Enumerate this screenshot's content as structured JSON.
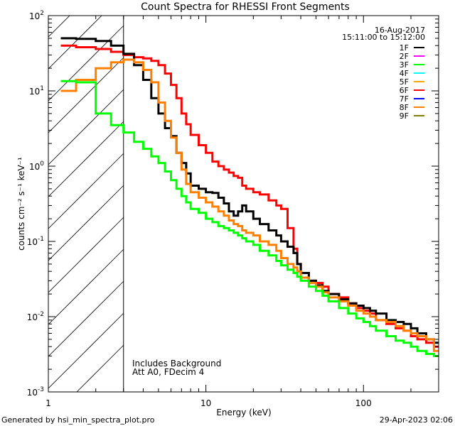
{
  "footer": {
    "left": "Generated by hsi_min_spectra_plot.pro",
    "right": "29-Apr-2023 02:06"
  },
  "chart_data": {
    "type": "line",
    "title": "Count Spectra for RHESSI Front Segments",
    "xlabel": "Energy (keV)",
    "ylabel": "counts cm⁻² s⁻¹ keV⁻¹",
    "xscale": "log",
    "yscale": "log",
    "xlim": [
      1,
      300
    ],
    "ylim": [
      0.001,
      100
    ],
    "x_ticks": [
      {
        "value": 1,
        "label": "1"
      },
      {
        "value": 10,
        "label": "10"
      },
      {
        "value": 100,
        "label": "100"
      }
    ],
    "y_ticks": [
      {
        "value": 0.001,
        "base": "10",
        "exp": "-3"
      },
      {
        "value": 0.01,
        "base": "10",
        "exp": "-2"
      },
      {
        "value": 0.1,
        "base": "10",
        "exp": "-1"
      },
      {
        "value": 1,
        "base": "10",
        "exp": "0"
      },
      {
        "value": 10,
        "base": "10",
        "exp": "1"
      },
      {
        "value": 100,
        "base": "10",
        "exp": "2"
      }
    ],
    "attenuator_cutoff_keV": 3,
    "hatched_region": [
      1,
      3
    ],
    "info": {
      "date": "16-Aug-2017",
      "time_range": "15:11:00 to 15:12:00"
    },
    "annotations": [
      "Includes Background",
      "Att A0, FDecim 4"
    ],
    "legend": [
      {
        "name": "1F",
        "color": "#000000"
      },
      {
        "name": "2F",
        "color": "#ff00ff"
      },
      {
        "name": "3F",
        "color": "#00ff00"
      },
      {
        "name": "4F",
        "color": "#00ffff"
      },
      {
        "name": "5F",
        "color": "#ffa500"
      },
      {
        "name": "6F",
        "color": "#ff0000"
      },
      {
        "name": "7F",
        "color": "#0000ff"
      },
      {
        "name": "8F",
        "color": "#ff8000"
      },
      {
        "name": "9F",
        "color": "#808000"
      }
    ],
    "series": [
      {
        "name": "6F",
        "color": "#ff0000",
        "x": [
          1.2,
          1.5,
          2.0,
          2.5,
          3.0,
          3.5,
          4.0,
          4.5,
          5.0,
          5.5,
          6.0,
          6.5,
          7.0,
          7.5,
          8.0,
          9.0,
          10,
          11,
          12,
          13,
          14,
          15,
          16,
          17,
          18,
          20,
          22,
          25,
          28,
          30,
          33,
          36,
          38,
          40,
          45,
          50,
          55,
          60,
          70,
          80,
          90,
          100,
          110,
          120,
          140,
          160,
          180,
          200,
          220,
          250,
          280
        ],
        "y": [
          40,
          38,
          36,
          33,
          30,
          28,
          27,
          25,
          22,
          17,
          12,
          8,
          5,
          3.6,
          2.6,
          1.9,
          1.5,
          1.15,
          1.0,
          0.9,
          0.82,
          0.74,
          0.7,
          0.55,
          0.5,
          0.45,
          0.42,
          0.35,
          0.3,
          0.27,
          0.15,
          0.08,
          0.05,
          0.038,
          0.03,
          0.028,
          0.025,
          0.02,
          0.018,
          0.015,
          0.013,
          0.012,
          0.011,
          0.009,
          0.008,
          0.007,
          0.0065,
          0.0055,
          0.005,
          0.0045,
          0.004
        ]
      },
      {
        "name": "1F",
        "color": "#000000",
        "x": [
          1.2,
          1.5,
          2.0,
          2.5,
          3.0,
          3.5,
          4.0,
          4.5,
          5.0,
          5.5,
          6.0,
          6.5,
          7.0,
          7.5,
          8.0,
          9.0,
          10,
          11,
          12,
          13,
          14,
          15,
          16,
          17,
          18,
          20,
          22,
          25,
          28,
          30,
          33,
          36,
          38,
          40,
          45,
          50,
          55,
          60,
          70,
          80,
          90,
          100,
          110,
          120,
          140,
          160,
          180,
          200,
          220,
          250,
          280
        ],
        "y": [
          50,
          49,
          46,
          40,
          31,
          22,
          14,
          8,
          5,
          3.2,
          2.5,
          1.5,
          1.1,
          0.8,
          0.55,
          0.5,
          0.45,
          0.44,
          0.38,
          0.32,
          0.25,
          0.22,
          0.25,
          0.3,
          0.25,
          0.2,
          0.17,
          0.14,
          0.12,
          0.1,
          0.085,
          0.07,
          0.05,
          0.038,
          0.03,
          0.026,
          0.022,
          0.02,
          0.017,
          0.015,
          0.014,
          0.013,
          0.012,
          0.011,
          0.009,
          0.0085,
          0.008,
          0.007,
          0.006,
          0.005,
          0.0045
        ]
      },
      {
        "name": "8F",
        "color": "#ff8000",
        "x": [
          1.2,
          1.5,
          2.0,
          2.5,
          3.0,
          3.5,
          4.0,
          4.5,
          5.0,
          5.5,
          6.0,
          6.5,
          7.0,
          7.5,
          8.0,
          9.0,
          10,
          11,
          12,
          13,
          14,
          15,
          16,
          17,
          18,
          20,
          22,
          25,
          28,
          30,
          33,
          36,
          38,
          40,
          45,
          50,
          55,
          60,
          70,
          80,
          90,
          100,
          110,
          120,
          140,
          160,
          180,
          200,
          220,
          250,
          280
        ],
        "y": [
          10,
          14,
          20,
          24,
          26,
          24,
          19,
          13,
          7,
          4,
          2.4,
          1.5,
          0.9,
          0.58,
          0.45,
          0.38,
          0.33,
          0.29,
          0.25,
          0.22,
          0.19,
          0.17,
          0.16,
          0.14,
          0.13,
          0.12,
          0.1,
          0.09,
          0.075,
          0.06,
          0.05,
          0.045,
          0.04,
          0.033,
          0.028,
          0.025,
          0.021,
          0.018,
          0.016,
          0.014,
          0.012,
          0.011,
          0.01,
          0.009,
          0.0085,
          0.0075,
          0.0065,
          0.006,
          0.0055,
          0.005,
          0.0035
        ]
      },
      {
        "name": "3F",
        "color": "#00ff00",
        "x": [
          1.2,
          1.5,
          2.0,
          2.5,
          3.0,
          3.5,
          4.0,
          4.5,
          5.0,
          5.5,
          6.0,
          6.5,
          7.0,
          7.5,
          8.0,
          9.0,
          10,
          11,
          12,
          13,
          14,
          15,
          16,
          17,
          18,
          20,
          22,
          25,
          28,
          30,
          33,
          36,
          38,
          40,
          45,
          50,
          55,
          60,
          70,
          80,
          90,
          100,
          110,
          120,
          140,
          160,
          180,
          200,
          220,
          250,
          280
        ],
        "y": [
          13.5,
          13,
          5,
          3.5,
          2.8,
          2.1,
          1.7,
          1.35,
          1.1,
          0.85,
          0.65,
          0.5,
          0.4,
          0.33,
          0.27,
          0.24,
          0.2,
          0.18,
          0.16,
          0.15,
          0.14,
          0.13,
          0.12,
          0.11,
          0.1,
          0.09,
          0.075,
          0.065,
          0.055,
          0.048,
          0.042,
          0.038,
          0.034,
          0.03,
          0.025,
          0.022,
          0.019,
          0.016,
          0.013,
          0.011,
          0.0095,
          0.0085,
          0.0075,
          0.0065,
          0.0055,
          0.0048,
          0.0045,
          0.004,
          0.0035,
          0.0032,
          0.003
        ]
      }
    ]
  }
}
